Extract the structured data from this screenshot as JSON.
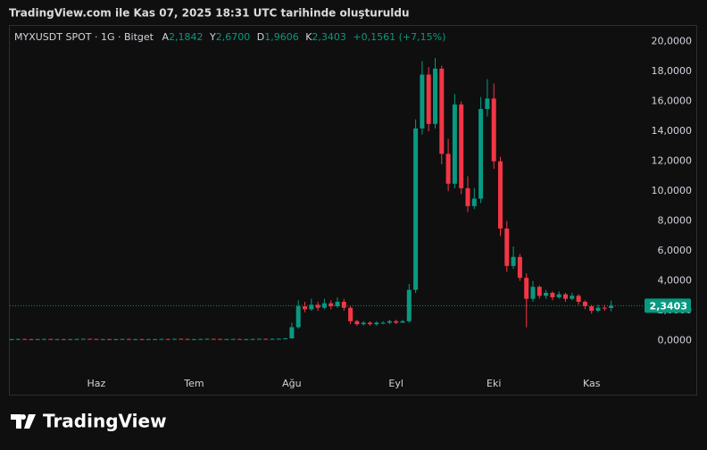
{
  "header": {
    "caption": "TradingView.com ile Kas 07, 2025 18:31 UTC tarihinde oluşturuldu"
  },
  "chart_data": {
    "type": "candlestick",
    "symbol": "MYXUSDT SPOT · 1G · Bitget",
    "ohlc_legend": [
      {
        "key": "A",
        "text": "2,1842"
      },
      {
        "key": "Y",
        "text": "2,6700"
      },
      {
        "key": "D",
        "text": "1,9606"
      },
      {
        "key": "K",
        "text": "2,3403"
      }
    ],
    "change": "+0,1561 (+7,15%)",
    "categories": [
      null,
      null,
      null,
      null,
      null,
      null,
      null,
      null,
      null,
      null,
      null,
      null,
      null,
      "Haz",
      null,
      null,
      null,
      null,
      null,
      null,
      null,
      null,
      null,
      null,
      null,
      null,
      null,
      null,
      "Tem",
      null,
      null,
      null,
      null,
      null,
      null,
      null,
      null,
      null,
      null,
      null,
      null,
      null,
      null,
      "Ağu",
      null,
      null,
      null,
      null,
      null,
      null,
      null,
      null,
      null,
      null,
      null,
      null,
      null,
      null,
      null,
      "Eyl",
      null,
      null,
      null,
      null,
      null,
      null,
      null,
      null,
      null,
      null,
      null,
      null,
      null,
      null,
      "Eki",
      null,
      null,
      null,
      null,
      null,
      null,
      null,
      null,
      null,
      null,
      null,
      null,
      null,
      null,
      "Kas",
      null,
      null,
      null
    ],
    "open": [
      0.1,
      0.1,
      0.11,
      0.1,
      0.09,
      0.1,
      0.11,
      0.1,
      0.1,
      0.09,
      0.1,
      0.11,
      0.12,
      0.11,
      0.1,
      0.1,
      0.09,
      0.1,
      0.11,
      0.1,
      0.1,
      0.09,
      0.1,
      0.1,
      0.11,
      0.1,
      0.12,
      0.11,
      0.1,
      0.1,
      0.11,
      0.12,
      0.11,
      0.1,
      0.1,
      0.11,
      0.1,
      0.1,
      0.11,
      0.12,
      0.11,
      0.12,
      0.13,
      0.15,
      0.9,
      2.3,
      2.1,
      2.4,
      2.2,
      2.5,
      2.3,
      2.6,
      2.2,
      1.3,
      1.1,
      1.2,
      1.1,
      1.2,
      1.2,
      1.3,
      1.2,
      1.3,
      3.4,
      14.2,
      17.8,
      14.5,
      18.2,
      12.5,
      10.5,
      15.8,
      10.2,
      9.0,
      9.5,
      15.5,
      16.2,
      12.0,
      7.5,
      5.0,
      5.6,
      4.2,
      2.8,
      3.6,
      3.0,
      3.2,
      2.9,
      3.1,
      2.8,
      3.0,
      2.6,
      2.3,
      2.0,
      2.2,
      2.1842
    ],
    "high": [
      0.12,
      0.13,
      0.13,
      0.12,
      0.12,
      0.13,
      0.13,
      0.12,
      0.12,
      0.12,
      0.13,
      0.14,
      0.14,
      0.13,
      0.12,
      0.12,
      0.12,
      0.13,
      0.13,
      0.12,
      0.12,
      0.12,
      0.12,
      0.13,
      0.13,
      0.14,
      0.14,
      0.13,
      0.12,
      0.13,
      0.14,
      0.14,
      0.13,
      0.12,
      0.13,
      0.13,
      0.12,
      0.13,
      0.14,
      0.14,
      0.14,
      0.15,
      0.18,
      1.2,
      2.7,
      2.6,
      2.8,
      2.6,
      2.8,
      2.7,
      2.9,
      2.8,
      2.3,
      1.4,
      1.3,
      1.3,
      1.3,
      1.3,
      1.4,
      1.4,
      1.4,
      3.8,
      14.8,
      18.7,
      18.3,
      18.9,
      18.4,
      13.5,
      16.5,
      16.0,
      11.0,
      10.2,
      16.3,
      17.5,
      17.2,
      12.3,
      8.0,
      6.3,
      5.8,
      4.5,
      4.0,
      3.7,
      3.4,
      3.3,
      3.3,
      3.2,
      3.2,
      3.1,
      2.7,
      2.4,
      2.4,
      2.4,
      2.67
    ],
    "low": [
      0.08,
      0.08,
      0.08,
      0.07,
      0.07,
      0.08,
      0.08,
      0.08,
      0.07,
      0.07,
      0.08,
      0.09,
      0.09,
      0.08,
      0.08,
      0.07,
      0.07,
      0.08,
      0.08,
      0.08,
      0.07,
      0.07,
      0.08,
      0.08,
      0.08,
      0.08,
      0.09,
      0.08,
      0.08,
      0.08,
      0.09,
      0.09,
      0.08,
      0.08,
      0.08,
      0.08,
      0.08,
      0.08,
      0.09,
      0.09,
      0.09,
      0.1,
      0.11,
      0.14,
      0.8,
      1.9,
      2.0,
      2.0,
      2.1,
      2.1,
      2.2,
      2.0,
      1.1,
      1.0,
      1.0,
      1.0,
      1.0,
      1.1,
      1.1,
      1.1,
      1.2,
      1.2,
      3.2,
      13.8,
      14.0,
      14.2,
      11.8,
      10.0,
      10.2,
      9.8,
      8.6,
      8.8,
      9.2,
      15.0,
      11.5,
      7.0,
      4.6,
      4.8,
      4.0,
      0.9,
      2.6,
      2.8,
      2.8,
      2.7,
      2.8,
      2.6,
      2.7,
      2.4,
      2.1,
      1.8,
      1.9,
      2.0,
      1.9606
    ],
    "close": [
      0.1,
      0.11,
      0.1,
      0.09,
      0.1,
      0.11,
      0.1,
      0.1,
      0.09,
      0.1,
      0.11,
      0.12,
      0.11,
      0.1,
      0.1,
      0.09,
      0.1,
      0.11,
      0.1,
      0.1,
      0.09,
      0.1,
      0.1,
      0.11,
      0.1,
      0.12,
      0.11,
      0.1,
      0.1,
      0.11,
      0.12,
      0.11,
      0.1,
      0.1,
      0.11,
      0.1,
      0.1,
      0.11,
      0.12,
      0.11,
      0.12,
      0.13,
      0.15,
      0.9,
      2.3,
      2.1,
      2.4,
      2.2,
      2.5,
      2.3,
      2.6,
      2.2,
      1.3,
      1.1,
      1.2,
      1.1,
      1.2,
      1.2,
      1.3,
      1.2,
      1.3,
      3.4,
      14.2,
      17.8,
      14.5,
      18.2,
      12.5,
      10.5,
      15.8,
      10.2,
      9.0,
      9.5,
      15.5,
      16.2,
      12.0,
      7.5,
      5.0,
      5.6,
      4.2,
      2.8,
      3.6,
      3.0,
      3.2,
      2.9,
      3.1,
      2.8,
      3.0,
      2.6,
      2.3,
      2.0,
      2.2,
      2.1842,
      2.3403
    ],
    "up_color": "#089981",
    "down_color": "#f23645",
    "ylim": [
      -2,
      21
    ],
    "yticks": [
      {
        "value": 0,
        "label": "0,0000"
      },
      {
        "value": 2,
        "label": "2,0000"
      },
      {
        "value": 4,
        "label": "4,0000"
      },
      {
        "value": 6,
        "label": "6,0000"
      },
      {
        "value": 8,
        "label": "8,0000"
      },
      {
        "value": 10,
        "label": "10,0000"
      },
      {
        "value": 12,
        "label": "12,0000"
      },
      {
        "value": 14,
        "label": "14,0000"
      },
      {
        "value": 16,
        "label": "16,0000"
      },
      {
        "value": 18,
        "label": "18,0000"
      },
      {
        "value": 20,
        "label": "20,0000"
      }
    ],
    "last_price": {
      "value": 2.3403,
      "label": "2,3403"
    }
  },
  "footer": {
    "brand": "TradingView"
  }
}
